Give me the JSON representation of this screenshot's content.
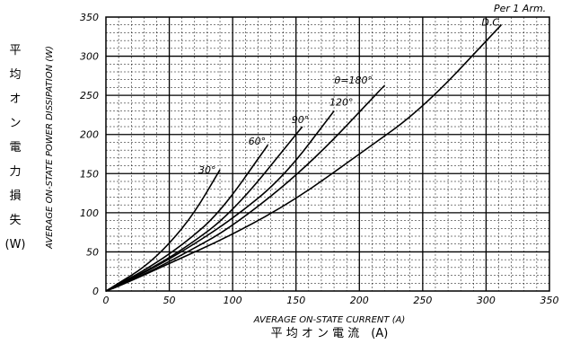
{
  "chart_data": {
    "type": "line",
    "title": "Per 1 Arm.",
    "xlabel": "AVERAGE ON-STATE CURRENT (A)",
    "xlabel_jp": "平 均 オ ン 電 流　(A)",
    "ylabel": "AVERAGE ON-STATE POWER DISSIPATION (W)",
    "ylabel_jp": [
      "平",
      "均",
      "オ",
      "ン",
      "電",
      "力",
      "損",
      "失",
      "(W)"
    ],
    "xlim": [
      0,
      350
    ],
    "ylim": [
      0,
      350
    ],
    "xticks": [
      "0",
      "50",
      "100",
      "150",
      "200",
      "250",
      "300",
      "350"
    ],
    "yticks": [
      "0",
      "50",
      "100",
      "150",
      "200",
      "250",
      "300",
      "350"
    ],
    "grid": true,
    "series": [
      {
        "name": "30°",
        "x": [
          0,
          10,
          30,
          50,
          70,
          90
        ],
        "y": [
          0,
          10,
          30,
          60,
          100,
          155
        ]
      },
      {
        "name": "60°",
        "x": [
          0,
          10,
          30,
          60,
          90,
          128
        ],
        "y": [
          0,
          9,
          26,
          58,
          100,
          187
        ]
      },
      {
        "name": "90°",
        "x": [
          0,
          10,
          30,
          60,
          100,
          155
        ],
        "y": [
          0,
          8,
          24,
          52,
          100,
          210
        ]
      },
      {
        "name": "120°",
        "x": [
          0,
          10,
          30,
          60,
          100,
          140,
          180
        ],
        "y": [
          0,
          8,
          23,
          50,
          92,
          145,
          230
        ]
      },
      {
        "name": "θ=180°",
        "x": [
          0,
          10,
          30,
          60,
          100,
          160,
          220
        ],
        "y": [
          0,
          7,
          21,
          46,
          82,
          160,
          263
        ]
      },
      {
        "name": "D.C.",
        "x": [
          0,
          10,
          50,
          100,
          150,
          200,
          250,
          312
        ],
        "y": [
          0,
          6,
          35,
          72,
          117,
          175,
          233,
          340
        ]
      }
    ]
  }
}
